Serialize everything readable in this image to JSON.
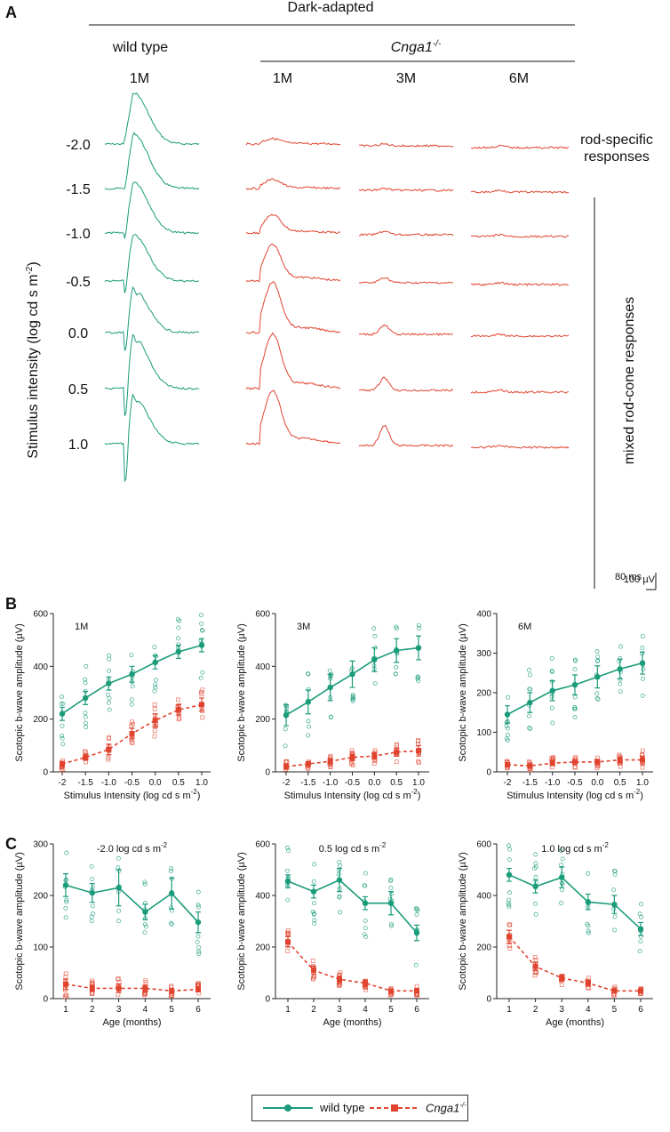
{
  "panels": {
    "A": "A",
    "B": "B",
    "C": "C"
  },
  "panel_a": {
    "dark_adapted": "Dark-adapted",
    "wild_type": "wild type",
    "genotype": "Cnga1",
    "genotype_sup": "-/-",
    "ages": [
      "1M",
      "1M",
      "3M",
      "6M"
    ],
    "y_label": "Stimulus intensity (log cd s m",
    "y_label_sup": "-2",
    "y_label_end": ")",
    "intensities": [
      "-2.0",
      "-1.5",
      "-1.0",
      "-0.5",
      "0.0",
      "0.5",
      "1.0"
    ],
    "rod_specific_1": "rod-specific",
    "rod_specific_2": "responses",
    "mixed": "mixed rod-cone responses",
    "scale_uv": "100 µV",
    "scale_ms": "80 ms"
  },
  "legend": {
    "wild_type": "wild type",
    "cnga": "Cnga1",
    "cnga_sup": "-/-"
  },
  "colors": {
    "wild_type": "#1a9b7a",
    "cnga": "#e0442f",
    "axis": "#222222"
  },
  "chart_data": [
    {
      "type": "line",
      "panel": "B",
      "inset": "1M",
      "xlabel": "Stimulus Intensity (log cd s m",
      "xlabel_sup": "-2",
      "xlabel_end": ")",
      "ylabel": "Scotopic b-wave amplitude (µV)",
      "categories": [
        "-2",
        "-1.5",
        "-1.0",
        "-0.5",
        "0.0",
        "0.5",
        "1.0"
      ],
      "ylim": [
        0,
        600
      ],
      "yticks": [
        "0",
        "200",
        "400",
        "600"
      ],
      "series": [
        {
          "name": "wild type",
          "values": [
            220,
            280,
            335,
            370,
            415,
            455,
            480
          ],
          "errors": [
            25,
            25,
            25,
            30,
            25,
            25,
            25
          ]
        },
        {
          "name": "Cnga1-/-",
          "values": [
            30,
            55,
            85,
            145,
            195,
            235,
            255
          ],
          "errors": [
            10,
            10,
            20,
            20,
            25,
            20,
            25
          ]
        }
      ]
    },
    {
      "type": "line",
      "panel": "B",
      "inset": "3M",
      "xlabel": "Stimulus Intensity (log cd s m",
      "xlabel_sup": "-2",
      "xlabel_end": ")",
      "ylabel": "Scotopic b-wave amplitude (µV)",
      "categories": [
        "-2",
        "-1.5",
        "-1.0",
        "-0.5",
        "0.0",
        "0.5",
        "1.0"
      ],
      "ylim": [
        0,
        600
      ],
      "yticks": [
        "0",
        "200",
        "400",
        "600"
      ],
      "series": [
        {
          "name": "wild type",
          "values": [
            215,
            265,
            320,
            370,
            425,
            460,
            470
          ],
          "errors": [
            40,
            45,
            50,
            50,
            45,
            45,
            45
          ]
        },
        {
          "name": "Cnga1-/-",
          "values": [
            20,
            30,
            40,
            55,
            60,
            75,
            80
          ],
          "errors": [
            8,
            8,
            10,
            12,
            12,
            15,
            20
          ]
        }
      ]
    },
    {
      "type": "line",
      "panel": "B",
      "inset": "6M",
      "xlabel": "Stimulus Intensity (log cd s m",
      "xlabel_sup": "-2",
      "xlabel_end": ")",
      "ylabel": "Scotopic b-wave amplitude (µV)",
      "categories": [
        "-2",
        "-1.5",
        "-1.0",
        "-0.5",
        "0.0",
        "0.5",
        "1.0"
      ],
      "ylim": [
        0,
        400
      ],
      "yticks": [
        "0",
        "100",
        "200",
        "300",
        "400"
      ],
      "series": [
        {
          "name": "wild type",
          "values": [
            145,
            175,
            205,
            220,
            240,
            260,
            275
          ],
          "errors": [
            22,
            25,
            25,
            25,
            28,
            25,
            28
          ]
        },
        {
          "name": "Cnga1-/-",
          "values": [
            18,
            15,
            22,
            25,
            25,
            30,
            30
          ],
          "errors": [
            5,
            5,
            6,
            6,
            6,
            8,
            10
          ]
        }
      ]
    },
    {
      "type": "line",
      "panel": "C",
      "inset": "-2.0 log cd s m",
      "inset_sup": "-2",
      "xlabel": "Age (months)",
      "ylabel": "Scotopic b-wave amplitude (µV)",
      "categories": [
        "1",
        "2",
        "3",
        "4",
        "5",
        "6"
      ],
      "ylim": [
        0,
        300
      ],
      "yticks": [
        "0",
        "100",
        "200",
        "300"
      ],
      "series": [
        {
          "name": "wild type",
          "values": [
            220,
            205,
            215,
            168,
            204,
            148
          ],
          "errors": [
            22,
            18,
            35,
            15,
            30,
            20
          ]
        },
        {
          "name": "Cnga1-/-",
          "values": [
            28,
            20,
            20,
            20,
            15,
            18
          ],
          "errors": [
            10,
            6,
            8,
            6,
            4,
            5
          ]
        }
      ]
    },
    {
      "type": "line",
      "panel": "C",
      "inset": "0.5 log cd s m",
      "inset_sup": "-2",
      "xlabel": "Age (months)",
      "ylabel": "Scotopic b-wave amplitude (µV)",
      "categories": [
        "1",
        "2",
        "3",
        "4",
        "5",
        "6"
      ],
      "ylim": [
        0,
        600
      ],
      "yticks": [
        "0",
        "200",
        "400",
        "600"
      ],
      "series": [
        {
          "name": "wild type",
          "values": [
            455,
            415,
            460,
            370,
            370,
            255
          ],
          "errors": [
            25,
            25,
            45,
            25,
            45,
            30
          ]
        },
        {
          "name": "Cnga1-/-",
          "values": [
            220,
            110,
            75,
            60,
            30,
            30
          ],
          "errors": [
            20,
            15,
            12,
            12,
            6,
            6
          ]
        }
      ]
    },
    {
      "type": "line",
      "panel": "C",
      "inset": "1.0 log cd s m",
      "inset_sup": "-2",
      "xlabel": "Age (months)",
      "ylabel": "Scotopic b-wave amplitude (µV)",
      "categories": [
        "1",
        "2",
        "3",
        "4",
        "5",
        "6"
      ],
      "ylim": [
        0,
        600
      ],
      "yticks": [
        "0",
        "200",
        "400",
        "600"
      ],
      "series": [
        {
          "name": "wild type",
          "values": [
            480,
            435,
            470,
            375,
            365,
            270
          ],
          "errors": [
            25,
            25,
            40,
            30,
            35,
            25
          ]
        },
        {
          "name": "Cnga1-/-",
          "values": [
            240,
            125,
            80,
            60,
            30,
            30
          ],
          "errors": [
            25,
            15,
            12,
            12,
            6,
            6
          ]
        }
      ]
    }
  ]
}
